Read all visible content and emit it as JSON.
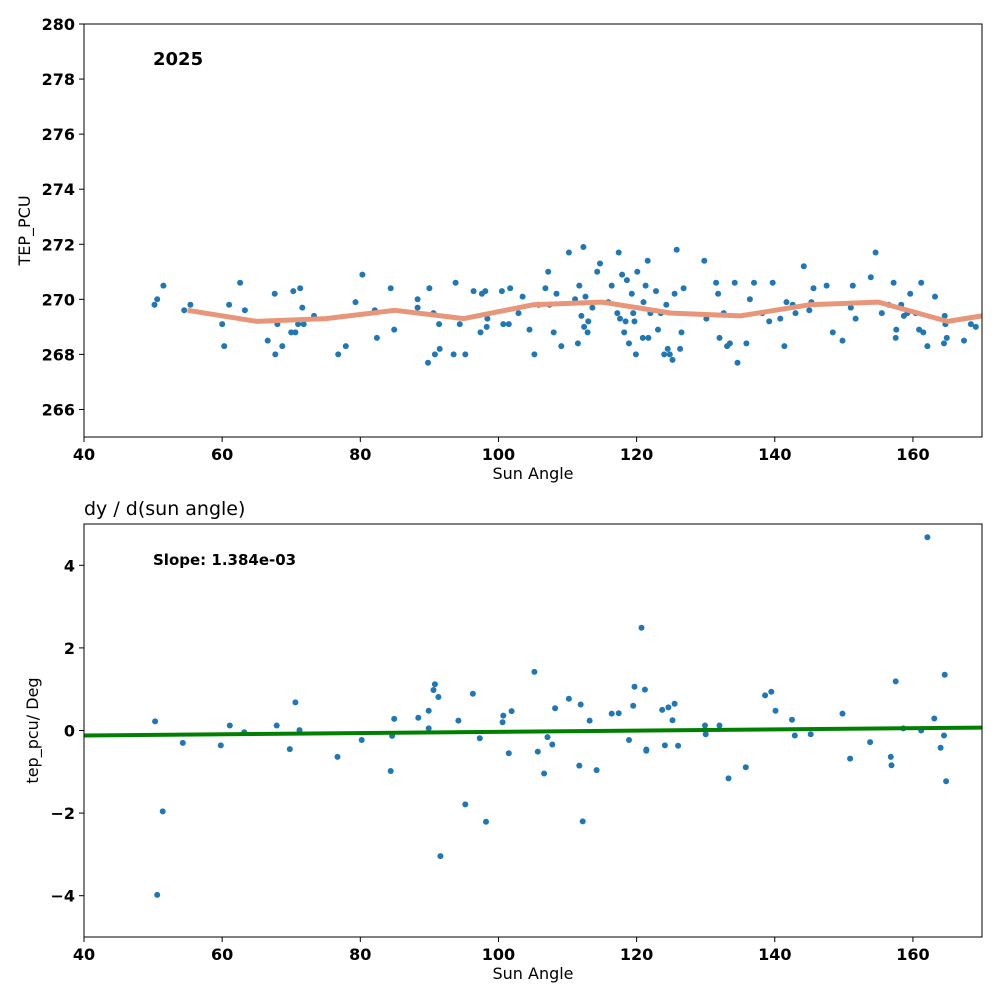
{
  "chart_data": [
    {
      "type": "scatter",
      "xlabel": "Sun Angle",
      "ylabel": "TEP_PCU",
      "annotation": "2025",
      "xlim": [
        40,
        170
      ],
      "ylim": [
        265,
        280
      ],
      "x_ticks": [
        40,
        60,
        80,
        100,
        120,
        140,
        160
      ],
      "y_ticks": [
        266,
        268,
        270,
        272,
        274,
        276,
        278,
        280
      ],
      "x_tick_labels": [
        "40",
        "60",
        "80",
        "100",
        "120",
        "140",
        "160"
      ],
      "y_tick_labels": [
        "266",
        "268",
        "270",
        "272",
        "274",
        "276",
        "278",
        "280"
      ],
      "grid": false,
      "colors": {
        "points": "#1f77b4",
        "trend": "#e8967a"
      },
      "points": [
        [
          50.2,
          269.8
        ],
        [
          50.6,
          270.0
        ],
        [
          51.5,
          270.5
        ],
        [
          54.5,
          269.6
        ],
        [
          55.4,
          269.8
        ],
        [
          60.0,
          269.1
        ],
        [
          60.3,
          268.3
        ],
        [
          61.0,
          269.8
        ],
        [
          62.6,
          270.6
        ],
        [
          63.3,
          269.6
        ],
        [
          66.6,
          268.5
        ],
        [
          67.6,
          270.2
        ],
        [
          67.7,
          268.0
        ],
        [
          68.0,
          269.1
        ],
        [
          68.7,
          268.3
        ],
        [
          70.0,
          268.8
        ],
        [
          70.3,
          270.3
        ],
        [
          70.6,
          268.8
        ],
        [
          71.0,
          269.1
        ],
        [
          71.3,
          270.4
        ],
        [
          71.6,
          269.7
        ],
        [
          71.8,
          269.1
        ],
        [
          73.3,
          269.4
        ],
        [
          76.8,
          268.0
        ],
        [
          77.9,
          268.3
        ],
        [
          79.3,
          269.9
        ],
        [
          80.3,
          270.9
        ],
        [
          82.1,
          269.6
        ],
        [
          82.4,
          268.6
        ],
        [
          84.4,
          270.4
        ],
        [
          84.9,
          268.9
        ],
        [
          88.3,
          270.0
        ],
        [
          88.3,
          269.7
        ],
        [
          89.8,
          267.7
        ],
        [
          90.0,
          270.4
        ],
        [
          90.6,
          269.5
        ],
        [
          90.8,
          268.0
        ],
        [
          91.4,
          269.1
        ],
        [
          91.5,
          268.2
        ],
        [
          93.5,
          268.0
        ],
        [
          93.8,
          270.6
        ],
        [
          94.4,
          269.1
        ],
        [
          95.2,
          268.0
        ],
        [
          96.4,
          270.3
        ],
        [
          97.4,
          268.8
        ],
        [
          97.6,
          270.2
        ],
        [
          98.1,
          270.3
        ],
        [
          98.3,
          269.0
        ],
        [
          98.4,
          269.3
        ],
        [
          100.5,
          270.3
        ],
        [
          100.7,
          269.1
        ],
        [
          101.5,
          269.1
        ],
        [
          101.7,
          270.4
        ],
        [
          102.9,
          269.5
        ],
        [
          103.5,
          270.1
        ],
        [
          104.5,
          268.9
        ],
        [
          105.2,
          268.0
        ],
        [
          105.8,
          269.8
        ],
        [
          106.8,
          270.4
        ],
        [
          107.2,
          271.0
        ],
        [
          107.4,
          269.8
        ],
        [
          108.0,
          268.8
        ],
        [
          108.4,
          270.2
        ],
        [
          109.1,
          268.3
        ],
        [
          110.2,
          271.7
        ],
        [
          111.1,
          270.0
        ],
        [
          111.5,
          268.4
        ],
        [
          111.7,
          270.5
        ],
        [
          112.0,
          269.4
        ],
        [
          112.3,
          271.9
        ],
        [
          112.4,
          269.0
        ],
        [
          112.6,
          270.1
        ],
        [
          112.9,
          268.8
        ],
        [
          113.0,
          269.2
        ],
        [
          113.6,
          269.7
        ],
        [
          114.3,
          271.0
        ],
        [
          114.7,
          271.3
        ],
        [
          115.9,
          269.9
        ],
        [
          116.4,
          270.5
        ],
        [
          117.2,
          269.5
        ],
        [
          117.4,
          271.7
        ],
        [
          117.6,
          269.3
        ],
        [
          117.9,
          270.9
        ],
        [
          118.2,
          268.8
        ],
        [
          118.4,
          269.2
        ],
        [
          118.6,
          270.7
        ],
        [
          118.9,
          268.4
        ],
        [
          119.3,
          270.2
        ],
        [
          119.5,
          269.5
        ],
        [
          119.7,
          269.2
        ],
        [
          119.9,
          268.0
        ],
        [
          120.1,
          271.0
        ],
        [
          120.9,
          268.6
        ],
        [
          121.0,
          269.9
        ],
        [
          121.3,
          270.5
        ],
        [
          121.6,
          271.4
        ],
        [
          121.7,
          268.6
        ],
        [
          122.0,
          269.5
        ],
        [
          122.8,
          270.3
        ],
        [
          123.1,
          268.9
        ],
        [
          123.5,
          269.5
        ],
        [
          124.0,
          268.0
        ],
        [
          124.3,
          269.8
        ],
        [
          124.5,
          268.2
        ],
        [
          124.8,
          268.0
        ],
        [
          125.2,
          267.8
        ],
        [
          125.5,
          270.2
        ],
        [
          125.8,
          271.8
        ],
        [
          126.3,
          268.2
        ],
        [
          126.5,
          268.8
        ],
        [
          126.8,
          270.4
        ],
        [
          129.8,
          271.4
        ],
        [
          130.1,
          269.3
        ],
        [
          131.5,
          270.6
        ],
        [
          131.8,
          270.2
        ],
        [
          132.0,
          268.6
        ],
        [
          132.6,
          269.5
        ],
        [
          133.1,
          268.3
        ],
        [
          133.5,
          268.4
        ],
        [
          134.2,
          270.6
        ],
        [
          134.6,
          267.7
        ],
        [
          135.9,
          268.4
        ],
        [
          136.4,
          270.0
        ],
        [
          137.0,
          270.6
        ],
        [
          138.2,
          269.5
        ],
        [
          139.2,
          269.2
        ],
        [
          139.7,
          270.6
        ],
        [
          140.8,
          269.3
        ],
        [
          141.4,
          268.3
        ],
        [
          141.7,
          269.9
        ],
        [
          142.6,
          269.8
        ],
        [
          143.0,
          269.5
        ],
        [
          144.2,
          271.2
        ],
        [
          145.0,
          269.6
        ],
        [
          145.3,
          269.9
        ],
        [
          145.6,
          270.4
        ],
        [
          147.5,
          270.5
        ],
        [
          148.4,
          268.8
        ],
        [
          149.8,
          268.5
        ],
        [
          151.0,
          269.7
        ],
        [
          151.3,
          270.5
        ],
        [
          151.7,
          269.3
        ],
        [
          153.9,
          270.8
        ],
        [
          154.6,
          271.7
        ],
        [
          155.5,
          269.5
        ],
        [
          156.5,
          269.8
        ],
        [
          157.2,
          270.6
        ],
        [
          157.5,
          268.6
        ],
        [
          157.6,
          268.9
        ],
        [
          158.3,
          269.8
        ],
        [
          158.7,
          269.4
        ],
        [
          159.2,
          269.5
        ],
        [
          159.6,
          270.2
        ],
        [
          160.4,
          269.5
        ],
        [
          160.9,
          268.9
        ],
        [
          161.2,
          270.6
        ],
        [
          161.5,
          268.8
        ],
        [
          162.1,
          268.3
        ],
        [
          163.2,
          270.1
        ],
        [
          164.5,
          268.4
        ],
        [
          164.6,
          269.4
        ],
        [
          164.7,
          269.1
        ],
        [
          164.9,
          268.6
        ],
        [
          167.4,
          268.5
        ],
        [
          168.4,
          269.1
        ],
        [
          169.1,
          269.0
        ]
      ],
      "trend_line": [
        [
          55,
          269.6
        ],
        [
          65,
          269.2
        ],
        [
          75,
          269.3
        ],
        [
          85,
          269.6
        ],
        [
          95,
          269.3
        ],
        [
          105,
          269.8
        ],
        [
          115,
          269.9
        ],
        [
          125,
          269.5
        ],
        [
          135,
          269.4
        ],
        [
          145,
          269.8
        ],
        [
          155,
          269.9
        ],
        [
          165,
          269.2
        ],
        [
          170,
          269.4
        ]
      ]
    },
    {
      "type": "scatter",
      "title": "dy / d(sun angle)",
      "xlabel": "Sun Angle",
      "ylabel": "tep_pcu/ Deg",
      "annotation": "Slope: 1.384e-03",
      "xlim": [
        40,
        170
      ],
      "ylim": [
        -5,
        5
      ],
      "x_ticks": [
        40,
        60,
        80,
        100,
        120,
        140,
        160
      ],
      "y_ticks": [
        -4,
        -2,
        0,
        2,
        4
      ],
      "x_tick_labels": [
        "40",
        "60",
        "80",
        "100",
        "120",
        "140",
        "160"
      ],
      "y_tick_labels": [
        "−4",
        "−2",
        "0",
        "2",
        "4"
      ],
      "grid": false,
      "colors": {
        "points": "#1f77b4",
        "fit": "#008000"
      },
      "points": [
        [
          50.3,
          0.22
        ],
        [
          50.6,
          -3.98
        ],
        [
          51.4,
          -1.96
        ],
        [
          54.3,
          -0.3
        ],
        [
          59.8,
          -0.36
        ],
        [
          61.1,
          0.12
        ],
        [
          63.2,
          -0.04
        ],
        [
          67.9,
          0.12
        ],
        [
          69.8,
          -0.45
        ],
        [
          70.6,
          0.68
        ],
        [
          71.2,
          0.01
        ],
        [
          76.7,
          -0.64
        ],
        [
          80.2,
          -0.23
        ],
        [
          84.4,
          -0.98
        ],
        [
          84.6,
          -0.13
        ],
        [
          84.9,
          0.28
        ],
        [
          88.4,
          0.31
        ],
        [
          89.9,
          0.05
        ],
        [
          89.9,
          0.48
        ],
        [
          90.6,
          0.98
        ],
        [
          90.8,
          1.12
        ],
        [
          91.3,
          0.81
        ],
        [
          91.6,
          -3.04
        ],
        [
          94.2,
          0.24
        ],
        [
          95.2,
          -1.79
        ],
        [
          96.3,
          0.89
        ],
        [
          97.3,
          -0.19
        ],
        [
          98.2,
          -2.21
        ],
        [
          100.6,
          0.2
        ],
        [
          100.7,
          0.36
        ],
        [
          101.5,
          -0.55
        ],
        [
          101.9,
          0.47
        ],
        [
          105.2,
          1.42
        ],
        [
          105.7,
          -0.51
        ],
        [
          106.6,
          -1.04
        ],
        [
          107.1,
          -0.16
        ],
        [
          107.8,
          -0.34
        ],
        [
          108.2,
          0.54
        ],
        [
          110.2,
          0.77
        ],
        [
          111.7,
          -0.85
        ],
        [
          111.9,
          0.63
        ],
        [
          112.2,
          -2.2
        ],
        [
          113.2,
          0.24
        ],
        [
          114.2,
          -0.96
        ],
        [
          116.4,
          0.41
        ],
        [
          117.4,
          0.42
        ],
        [
          118.9,
          -0.23
        ],
        [
          119.5,
          0.6
        ],
        [
          119.7,
          1.06
        ],
        [
          120.7,
          2.49
        ],
        [
          121.2,
          0.99
        ],
        [
          121.4,
          -0.46
        ],
        [
          121.4,
          -0.49
        ],
        [
          123.7,
          0.5
        ],
        [
          124.1,
          -0.36
        ],
        [
          124.6,
          0.56
        ],
        [
          125.2,
          0.25
        ],
        [
          125.5,
          0.65
        ],
        [
          126.0,
          -0.37
        ],
        [
          129.9,
          0.12
        ],
        [
          130.0,
          -0.09
        ],
        [
          132.0,
          0.12
        ],
        [
          133.3,
          -1.16
        ],
        [
          135.8,
          -0.89
        ],
        [
          138.6,
          0.85
        ],
        [
          139.5,
          0.94
        ],
        [
          140.1,
          0.48
        ],
        [
          142.5,
          0.26
        ],
        [
          142.9,
          -0.12
        ],
        [
          145.2,
          -0.09
        ],
        [
          149.8,
          0.41
        ],
        [
          150.9,
          -0.68
        ],
        [
          153.8,
          -0.28
        ],
        [
          156.8,
          -0.64
        ],
        [
          156.9,
          -0.84
        ],
        [
          157.5,
          1.19
        ],
        [
          158.6,
          0.05
        ],
        [
          161.2,
          0.0
        ],
        [
          162.1,
          4.68
        ],
        [
          163.1,
          0.29
        ],
        [
          164.0,
          -0.42
        ],
        [
          164.5,
          -0.12
        ],
        [
          164.6,
          1.35
        ],
        [
          164.8,
          -1.23
        ]
      ],
      "fit_line": [
        [
          40,
          -0.12
        ],
        [
          170,
          0.07
        ]
      ]
    }
  ]
}
